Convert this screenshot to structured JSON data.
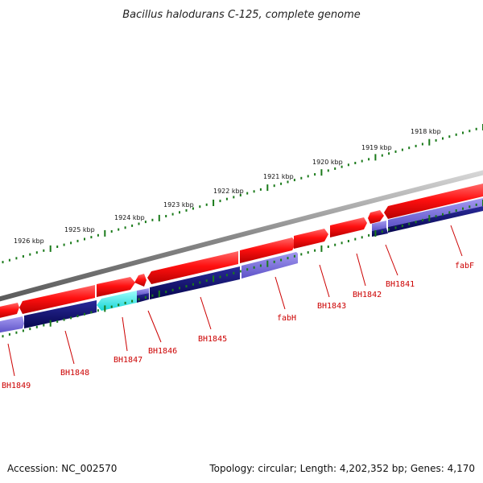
{
  "title": "Bacillus halodurans C-125, complete genome",
  "footer": {
    "accession": "Accession: NC_002570",
    "topology": "Topology: circular; Length: 4,202,352 bp; Genes: 4,170"
  },
  "scale_labels": [
    "1926 kbp",
    "1925 kbp",
    "1924 kbp",
    "1923 kbp",
    "1922 kbp",
    "1921 kbp",
    "1920 kbp",
    "1919 kbp",
    "1918 kbp"
  ],
  "gene_labels": [
    "BH1849",
    "BH1848",
    "BH1847",
    "BH1846",
    "BH1845",
    "fabH",
    "BH1843",
    "BH1842",
    "BH1841",
    "fabF"
  ],
  "colors": {
    "forward_gene": "#ee0000",
    "reverse_gene": "#0a0a7a",
    "reverse_gene_light": "#7a6ed6",
    "highlight_gene": "#33eeee",
    "backbone": "#888888",
    "tick": "#1a7a1a",
    "label": "#cc0000"
  }
}
